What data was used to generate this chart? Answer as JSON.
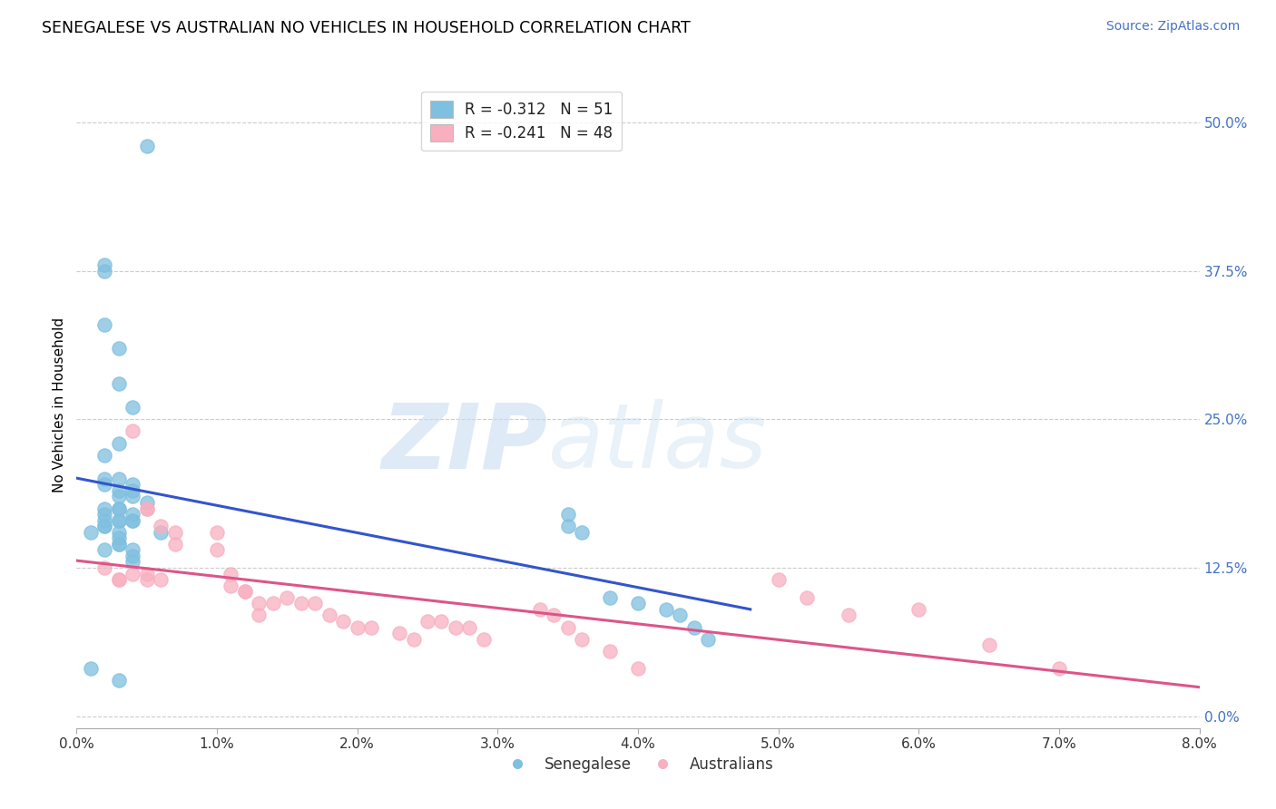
{
  "title": "SENEGALESE VS AUSTRALIAN NO VEHICLES IN HOUSEHOLD CORRELATION CHART",
  "source": "Source: ZipAtlas.com",
  "ylabel": "No Vehicles in Household",
  "ytick_labels": [
    "0.0%",
    "12.5%",
    "25.0%",
    "37.5%",
    "50.0%"
  ],
  "ytick_values": [
    0.0,
    0.125,
    0.25,
    0.375,
    0.5
  ],
  "xlim": [
    0.0,
    0.08
  ],
  "ylim": [
    -0.01,
    0.535
  ],
  "legend_blue_label": "R = -0.312   N = 51",
  "legend_pink_label": "R = -0.241   N = 48",
  "senegalese_color": "#7fbfdf",
  "australian_color": "#f8afc0",
  "trendline_blue_color": "#3355cc",
  "trendline_pink_color": "#dd5588",
  "watermark_zip": "ZIP",
  "watermark_atlas": "atlas",
  "senegalese_points_x": [
    0.002,
    0.005,
    0.002,
    0.002,
    0.003,
    0.003,
    0.004,
    0.003,
    0.002,
    0.003,
    0.003,
    0.004,
    0.004,
    0.002,
    0.002,
    0.003,
    0.004,
    0.002,
    0.002,
    0.003,
    0.004,
    0.002,
    0.001,
    0.003,
    0.002,
    0.006,
    0.003,
    0.005,
    0.002,
    0.002,
    0.003,
    0.003,
    0.004,
    0.004,
    0.003,
    0.003,
    0.004,
    0.004,
    0.004,
    0.003,
    0.035,
    0.035,
    0.036,
    0.038,
    0.04,
    0.042,
    0.043,
    0.044,
    0.045,
    0.001,
    0.003
  ],
  "senegalese_points_y": [
    0.38,
    0.48,
    0.375,
    0.33,
    0.31,
    0.28,
    0.26,
    0.23,
    0.22,
    0.2,
    0.19,
    0.195,
    0.19,
    0.17,
    0.175,
    0.175,
    0.185,
    0.165,
    0.16,
    0.165,
    0.165,
    0.16,
    0.155,
    0.15,
    0.14,
    0.155,
    0.145,
    0.18,
    0.2,
    0.195,
    0.185,
    0.175,
    0.17,
    0.165,
    0.155,
    0.145,
    0.14,
    0.135,
    0.13,
    0.165,
    0.17,
    0.16,
    0.155,
    0.1,
    0.095,
    0.09,
    0.085,
    0.075,
    0.065,
    0.04,
    0.03
  ],
  "australian_points_x": [
    0.002,
    0.003,
    0.003,
    0.004,
    0.004,
    0.005,
    0.005,
    0.005,
    0.005,
    0.006,
    0.006,
    0.007,
    0.007,
    0.01,
    0.01,
    0.011,
    0.011,
    0.012,
    0.012,
    0.013,
    0.013,
    0.014,
    0.015,
    0.016,
    0.017,
    0.018,
    0.019,
    0.02,
    0.021,
    0.023,
    0.024,
    0.025,
    0.026,
    0.027,
    0.028,
    0.029,
    0.033,
    0.034,
    0.035,
    0.036,
    0.038,
    0.04,
    0.05,
    0.052,
    0.055,
    0.06,
    0.065,
    0.07
  ],
  "australian_points_y": [
    0.125,
    0.115,
    0.115,
    0.24,
    0.12,
    0.175,
    0.175,
    0.12,
    0.115,
    0.16,
    0.115,
    0.155,
    0.145,
    0.155,
    0.14,
    0.12,
    0.11,
    0.105,
    0.105,
    0.095,
    0.085,
    0.095,
    0.1,
    0.095,
    0.095,
    0.085,
    0.08,
    0.075,
    0.075,
    0.07,
    0.065,
    0.08,
    0.08,
    0.075,
    0.075,
    0.065,
    0.09,
    0.085,
    0.075,
    0.065,
    0.055,
    0.04,
    0.115,
    0.1,
    0.085,
    0.09,
    0.06,
    0.04
  ],
  "background_color": "#ffffff",
  "grid_color": "#cccccc"
}
